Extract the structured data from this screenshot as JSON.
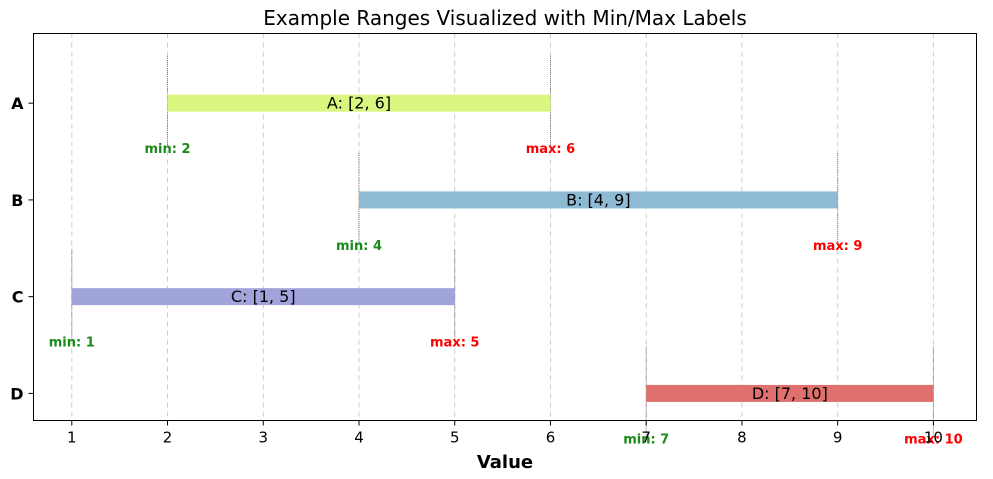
{
  "chart_data": {
    "type": "bar",
    "orientation": "horizontal-range",
    "title": "Example Ranges Visualized with Min/Max Labels",
    "xlabel": "Value",
    "ylabel": "",
    "xlim": [
      0.6,
      10.45
    ],
    "xticks": [
      1,
      2,
      3,
      4,
      5,
      6,
      7,
      8,
      9,
      10
    ],
    "categories": [
      "A",
      "B",
      "C",
      "D"
    ],
    "ranges": [
      {
        "category": "A",
        "min": 2,
        "max": 6,
        "label": "A: [2, 6]",
        "min_label": "min: 2",
        "max_label": "max: 6",
        "color": "#d9f77f"
      },
      {
        "category": "B",
        "min": 4,
        "max": 9,
        "label": "B: [4, 9]",
        "min_label": "min: 4",
        "max_label": "max: 9",
        "color": "#8fbad4"
      },
      {
        "category": "C",
        "min": 1,
        "max": 5,
        "label": "C: [1, 5]",
        "min_label": "min: 1",
        "max_label": "max: 5",
        "color": "#a1a3db"
      },
      {
        "category": "D",
        "min": 7,
        "max": 10,
        "label": "D: [7, 10]",
        "min_label": "min: 7",
        "max_label": "max: 10",
        "color": "#e0706d"
      }
    ],
    "grid": {
      "x": true,
      "y": false,
      "style": "dashed"
    },
    "legend": "none",
    "colors": {
      "min_label": "#1a8a1a",
      "max_label": "#ff0000"
    }
  }
}
